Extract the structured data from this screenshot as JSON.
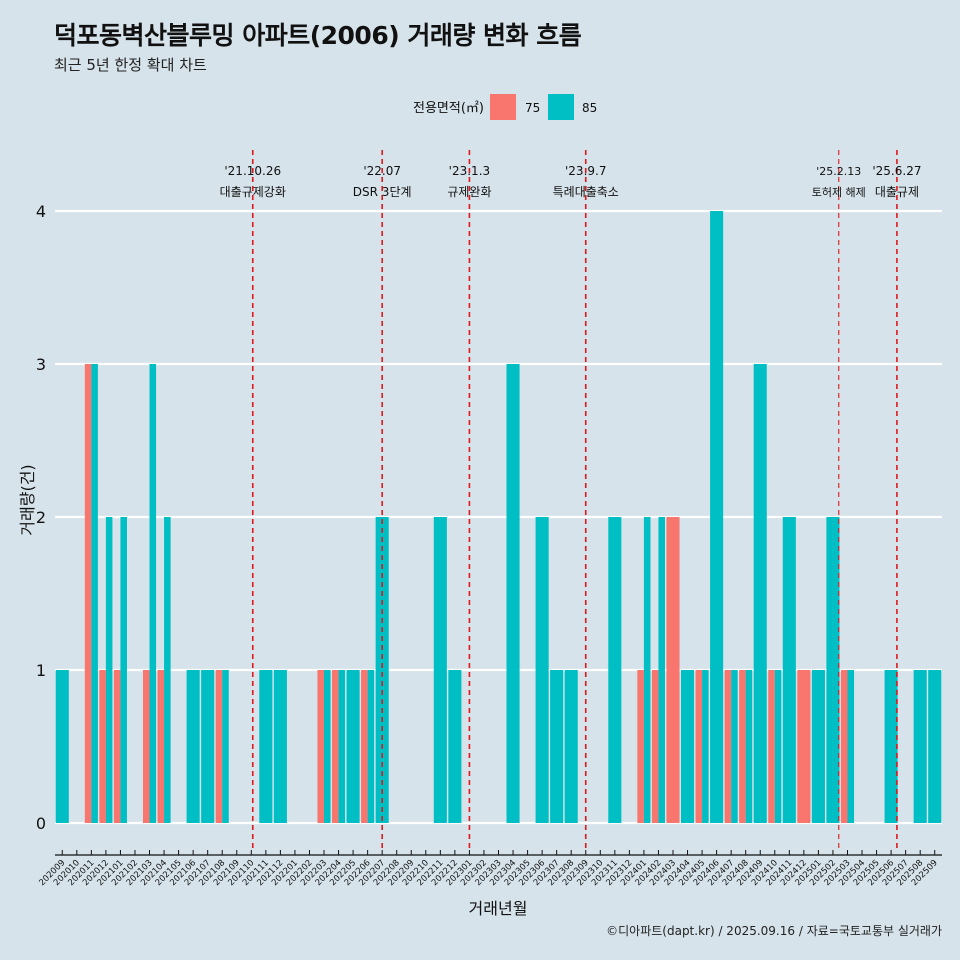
{
  "title": "덕포동벽산블루밍 아파트(2006) 거래량 변화 흐름",
  "subtitle": "최근 5년 한정 확대 차트",
  "caption": "©디아파트(dapt.kr) / 2025.09.16 / 자료=국토교통부 실거래가",
  "colors": {
    "background": "#d6e3ea",
    "s75": "#f8766d",
    "s85": "#00bfc4",
    "event_line": "#e0181b",
    "grid": "#ffffff"
  },
  "chart_data": {
    "type": "bar",
    "xlabel": "거래년월",
    "ylabel": "거래량(건)",
    "ylim": [
      0,
      4
    ],
    "yticks": [
      0,
      1,
      2,
      3,
      4
    ],
    "legend": {
      "title": "전용면적(㎡)",
      "position": "top"
    },
    "categories": [
      "202009",
      "202010",
      "202011",
      "202012",
      "202101",
      "202102",
      "202103",
      "202104",
      "202105",
      "202106",
      "202107",
      "202108",
      "202109",
      "202110",
      "202111",
      "202112",
      "202201",
      "202202",
      "202203",
      "202204",
      "202205",
      "202206",
      "202207",
      "202208",
      "202209",
      "202210",
      "202211",
      "202212",
      "202301",
      "202302",
      "202303",
      "202304",
      "202305",
      "202306",
      "202307",
      "202308",
      "202309",
      "202310",
      "202311",
      "202312",
      "202401",
      "202402",
      "202403",
      "202404",
      "202405",
      "202406",
      "202407",
      "202408",
      "202409",
      "202410",
      "202411",
      "202412",
      "202501",
      "202502",
      "202503",
      "202504",
      "202505",
      "202506",
      "202507",
      "202508",
      "202509"
    ],
    "series": [
      {
        "name": "75",
        "values": [
          0,
          0,
          3,
          1,
          1,
          0,
          1,
          1,
          0,
          0,
          0,
          1,
          0,
          0,
          0,
          0,
          0,
          0,
          1,
          1,
          0,
          1,
          0,
          0,
          0,
          0,
          0,
          0,
          0,
          0,
          0,
          0,
          0,
          0,
          0,
          0,
          0,
          0,
          0,
          0,
          1,
          1,
          2,
          0,
          1,
          0,
          1,
          1,
          0,
          1,
          0,
          1,
          0,
          0,
          1,
          0,
          0,
          0,
          0,
          0,
          0
        ]
      },
      {
        "name": "85",
        "values": [
          1,
          0,
          3,
          2,
          2,
          0,
          3,
          2,
          0,
          1,
          1,
          1,
          0,
          0,
          1,
          1,
          0,
          0,
          1,
          1,
          1,
          1,
          2,
          0,
          0,
          0,
          2,
          1,
          0,
          0,
          0,
          3,
          0,
          2,
          1,
          1,
          0,
          0,
          2,
          0,
          2,
          2,
          0,
          1,
          1,
          4,
          1,
          1,
          3,
          1,
          2,
          0,
          1,
          2,
          1,
          0,
          0,
          1,
          0,
          1,
          1
        ]
      }
    ],
    "events": [
      {
        "position": 13.1,
        "date": "'21.10.26",
        "label": "대출규제강화",
        "strong": true
      },
      {
        "position": 22.0,
        "date": "'22.07",
        "label": "DSR 3단계",
        "strong": true
      },
      {
        "position": 28.0,
        "date": "'23.1.3",
        "label": "규제완화",
        "strong": true
      },
      {
        "position": 36.0,
        "date": "'23.9.7",
        "label": "특례대출축소",
        "strong": true
      },
      {
        "position": 53.4,
        "date": "'25.2.13",
        "label": "토허제 해제",
        "strong": false
      },
      {
        "position": 57.4,
        "date": "'25.6.27",
        "label": "대출규제",
        "strong": true
      }
    ]
  }
}
